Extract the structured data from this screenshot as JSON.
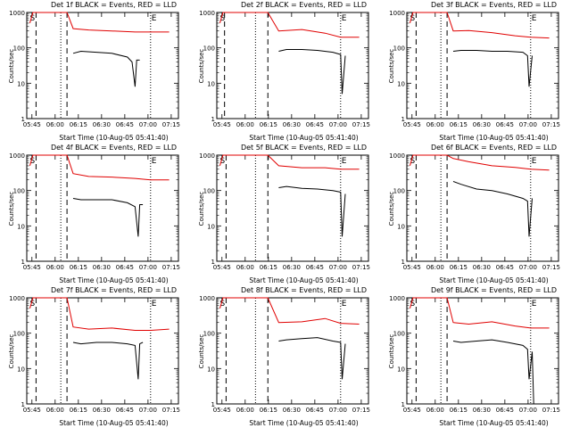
{
  "chart_data": [
    {
      "type": "line",
      "title": "Det 1f BLACK = Events, RED = LLD",
      "xlabel": "Start Time (10-Aug-05 05:41:40)",
      "ylabel": "Counts/sec",
      "yscale": "log",
      "ylim": [
        1,
        1000
      ],
      "yticks": [
        "1",
        "10",
        "100",
        "1000"
      ],
      "xticks": [
        "05:45",
        "06:00",
        "06:15",
        "06:30",
        "06:45",
        "07:00",
        "07:15"
      ],
      "xlim_minutes": [
        0,
        98
      ],
      "markers": [
        "S",
        "E"
      ],
      "dashed_lines_min": [
        6,
        26
      ],
      "dotted_lines_min": [
        22,
        80
      ],
      "series": [
        {
          "name": "LLD",
          "color": "#e00000",
          "x": [
            2,
            4,
            6,
            26,
            30,
            40,
            55,
            70,
            80,
            92
          ],
          "y": [
            500,
            1000,
            1000,
            1000,
            350,
            320,
            300,
            280,
            280,
            280
          ]
        },
        {
          "name": "Events",
          "color": "#000000",
          "x": [
            30,
            35,
            45,
            55,
            65,
            68,
            70,
            71,
            73
          ],
          "y": [
            70,
            80,
            75,
            70,
            55,
            40,
            8,
            45,
            45
          ]
        }
      ]
    },
    {
      "type": "line",
      "title": "Det 2f BLACK = Events, RED = LLD",
      "xlabel": "Start Time (10-Aug-05 05:41:40)",
      "ylabel": "Counts/sec",
      "yscale": "log",
      "ylim": [
        1,
        1000
      ],
      "yticks": [
        "1",
        "10",
        "100",
        "1000"
      ],
      "xticks": [
        "05:45",
        "06:00",
        "06:15",
        "06:30",
        "06:45",
        "07:00",
        "07:15"
      ],
      "xlim_minutes": [
        0,
        98
      ],
      "markers": [
        "S",
        "E"
      ],
      "dashed_lines_min": [
        5,
        33
      ],
      "dotted_lines_min": [
        25,
        80
      ],
      "series": [
        {
          "name": "LLD",
          "color": "#e00000",
          "x": [
            2,
            4,
            33,
            40,
            55,
            70,
            80,
            92
          ],
          "y": [
            500,
            1000,
            1000,
            300,
            330,
            260,
            200,
            200
          ]
        },
        {
          "name": "Events",
          "color": "#000000",
          "x": [
            40,
            45,
            55,
            65,
            75,
            80,
            81,
            83
          ],
          "y": [
            80,
            90,
            90,
            85,
            75,
            65,
            5,
            60
          ]
        }
      ]
    },
    {
      "type": "line",
      "title": "Det 3f BLACK = Events, RED = LLD",
      "xlabel": "Start Time (10-Aug-05 05:41:40)",
      "ylabel": "Counts/sec",
      "yscale": "log",
      "ylim": [
        1,
        1000
      ],
      "yticks": [
        "1",
        "10",
        "100",
        "1000"
      ],
      "xticks": [
        "05:45",
        "06:00",
        "06:15",
        "06:30",
        "06:45",
        "07:00",
        "07:15"
      ],
      "xlim_minutes": [
        0,
        98
      ],
      "markers": [
        "S",
        "E"
      ],
      "dashed_lines_min": [
        6,
        26
      ],
      "dotted_lines_min": [
        22,
        80
      ],
      "series": [
        {
          "name": "LLD",
          "color": "#e00000",
          "x": [
            2,
            4,
            26,
            30,
            40,
            55,
            70,
            80,
            92
          ],
          "y": [
            500,
            1000,
            1000,
            300,
            310,
            270,
            220,
            200,
            190
          ]
        },
        {
          "name": "Events",
          "color": "#000000",
          "x": [
            30,
            35,
            45,
            55,
            65,
            75,
            78,
            79,
            81
          ],
          "y": [
            80,
            85,
            85,
            80,
            80,
            75,
            60,
            8,
            60
          ]
        }
      ]
    },
    {
      "type": "line",
      "title": "Det 4f BLACK = Events, RED = LLD",
      "xlabel": "Start Time (10-Aug-05 05:41:40)",
      "ylabel": "Counts/sec",
      "yscale": "log",
      "ylim": [
        1,
        1000
      ],
      "yticks": [
        "1",
        "10",
        "100",
        "1000"
      ],
      "xticks": [
        "05:45",
        "06:00",
        "06:15",
        "06:30",
        "06:45",
        "07:00",
        "07:15"
      ],
      "xlim_minutes": [
        0,
        98
      ],
      "markers": [
        "S",
        "E"
      ],
      "dashed_lines_min": [
        6,
        26
      ],
      "dotted_lines_min": [
        22,
        80
      ],
      "series": [
        {
          "name": "LLD",
          "color": "#e00000",
          "x": [
            2,
            4,
            26,
            30,
            40,
            55,
            70,
            80,
            92
          ],
          "y": [
            500,
            1000,
            1000,
            300,
            250,
            240,
            220,
            200,
            200
          ]
        },
        {
          "name": "Events",
          "color": "#000000",
          "x": [
            30,
            35,
            45,
            55,
            65,
            70,
            72,
            73,
            75
          ],
          "y": [
            60,
            55,
            55,
            55,
            45,
            35,
            5,
            40,
            40
          ]
        }
      ]
    },
    {
      "type": "line",
      "title": "Det 5f BLACK = Events, RED = LLD",
      "xlabel": "Start Time (10-Aug-05 05:41:40)",
      "ylabel": "Counts/sec",
      "yscale": "log",
      "ylim": [
        1,
        1000
      ],
      "yticks": [
        "1",
        "10",
        "100",
        "1000"
      ],
      "xticks": [
        "05:45",
        "06:00",
        "06:15",
        "06:30",
        "06:45",
        "07:00",
        "07:15"
      ],
      "xlim_minutes": [
        0,
        98
      ],
      "markers": [
        "S",
        "E"
      ],
      "dashed_lines_min": [
        6,
        33
      ],
      "dotted_lines_min": [
        25,
        80
      ],
      "series": [
        {
          "name": "LLD",
          "color": "#e00000",
          "x": [
            2,
            4,
            33,
            40,
            55,
            70,
            80,
            92
          ],
          "y": [
            500,
            1000,
            1000,
            500,
            440,
            440,
            400,
            400
          ]
        },
        {
          "name": "Events",
          "color": "#000000",
          "x": [
            40,
            45,
            55,
            65,
            75,
            80,
            81,
            83
          ],
          "y": [
            120,
            130,
            115,
            110,
            100,
            90,
            5,
            80
          ]
        }
      ]
    },
    {
      "type": "line",
      "title": "Det 6f BLACK = Events, RED = LLD",
      "xlabel": "Start Time (10-Aug-05 05:41:40)",
      "ylabel": "Counts/sec",
      "yscale": "log",
      "ylim": [
        1,
        1000
      ],
      "yticks": [
        "1",
        "10",
        "100",
        "1000"
      ],
      "xticks": [
        "05:45",
        "06:00",
        "06:15",
        "06:30",
        "06:45",
        "07:00",
        "07:15"
      ],
      "xlim_minutes": [
        0,
        98
      ],
      "markers": [
        "S",
        "E"
      ],
      "dashed_lines_min": [
        6,
        26
      ],
      "dotted_lines_min": [
        22,
        80
      ],
      "series": [
        {
          "name": "LLD",
          "color": "#e00000",
          "x": [
            2,
            4,
            26,
            30,
            40,
            55,
            70,
            80,
            92
          ],
          "y": [
            500,
            1000,
            1000,
            800,
            650,
            500,
            450,
            400,
            380
          ]
        },
        {
          "name": "Events",
          "color": "#000000",
          "x": [
            30,
            35,
            45,
            55,
            65,
            75,
            78,
            79,
            81
          ],
          "y": [
            180,
            150,
            110,
            100,
            80,
            60,
            50,
            5,
            60
          ]
        }
      ]
    },
    {
      "type": "line",
      "title": "Det 7f BLACK = Events, RED = LLD",
      "xlabel": "Start Time (10-Aug-05 05:41:40)",
      "ylabel": "Counts/sec",
      "yscale": "log",
      "ylim": [
        1,
        1000
      ],
      "yticks": [
        "1",
        "10",
        "100",
        "1000"
      ],
      "xticks": [
        "05:45",
        "06:00",
        "06:15",
        "06:30",
        "06:45",
        "07:00",
        "07:15"
      ],
      "xlim_minutes": [
        0,
        98
      ],
      "markers": [
        "S",
        "E"
      ],
      "dashed_lines_min": [
        6,
        26
      ],
      "dotted_lines_min": [
        22,
        80
      ],
      "series": [
        {
          "name": "LLD",
          "color": "#e00000",
          "x": [
            2,
            4,
            26,
            30,
            40,
            55,
            70,
            80,
            92
          ],
          "y": [
            500,
            1000,
            1000,
            150,
            130,
            140,
            120,
            120,
            130
          ]
        },
        {
          "name": "Events",
          "color": "#000000",
          "x": [
            30,
            35,
            45,
            55,
            65,
            70,
            72,
            73,
            75
          ],
          "y": [
            55,
            50,
            55,
            55,
            50,
            45,
            5,
            50,
            55
          ]
        }
      ]
    },
    {
      "type": "line",
      "title": "Det 8f BLACK = Events, RED = LLD",
      "xlabel": "Start Time (10-Aug-05 05:41:40)",
      "ylabel": "Counts/sec",
      "yscale": "log",
      "ylim": [
        1,
        1000
      ],
      "yticks": [
        "1",
        "10",
        "100",
        "1000"
      ],
      "xticks": [
        "05:45",
        "06:00",
        "06:15",
        "06:30",
        "06:45",
        "07:00",
        "07:15"
      ],
      "xlim_minutes": [
        0,
        98
      ],
      "markers": [
        "S",
        "E"
      ],
      "dashed_lines_min": [
        6,
        33
      ],
      "dotted_lines_min": [
        25,
        80
      ],
      "series": [
        {
          "name": "LLD",
          "color": "#e00000",
          "x": [
            2,
            4,
            33,
            40,
            55,
            70,
            80,
            92
          ],
          "y": [
            500,
            1000,
            1000,
            200,
            210,
            260,
            190,
            180
          ]
        },
        {
          "name": "Events",
          "color": "#000000",
          "x": [
            40,
            45,
            55,
            65,
            75,
            80,
            81,
            83
          ],
          "y": [
            60,
            65,
            70,
            75,
            60,
            55,
            5,
            50
          ]
        }
      ]
    },
    {
      "type": "line",
      "title": "Det 9f BLACK = Events, RED = LLD",
      "xlabel": "Start Time (10-Aug-05 05:41:40)",
      "ylabel": "Counts/sec",
      "yscale": "log",
      "ylim": [
        1,
        1000
      ],
      "yticks": [
        "1",
        "10",
        "100",
        "1000"
      ],
      "xticks": [
        "05:45",
        "06:00",
        "06:15",
        "06:30",
        "06:45",
        "07:00",
        "07:15"
      ],
      "xlim_minutes": [
        0,
        98
      ],
      "markers": [
        "S",
        "E"
      ],
      "dashed_lines_min": [
        6,
        26
      ],
      "dotted_lines_min": [
        22,
        80
      ],
      "series": [
        {
          "name": "LLD",
          "color": "#e00000",
          "x": [
            2,
            4,
            26,
            30,
            40,
            55,
            70,
            80,
            92
          ],
          "y": [
            500,
            1000,
            1000,
            200,
            180,
            210,
            160,
            140,
            140
          ]
        },
        {
          "name": "Events",
          "color": "#000000",
          "x": [
            30,
            35,
            45,
            55,
            65,
            75,
            78,
            79,
            81,
            82
          ],
          "y": [
            60,
            55,
            60,
            65,
            55,
            45,
            35,
            5,
            30,
            1
          ]
        }
      ]
    }
  ]
}
